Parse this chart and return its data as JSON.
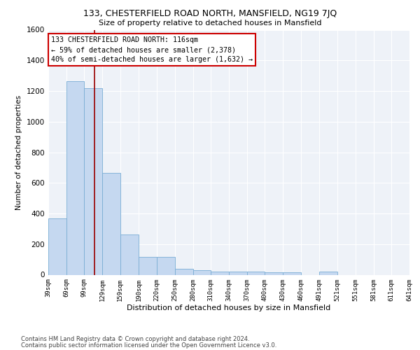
{
  "title": "133, CHESTERFIELD ROAD NORTH, MANSFIELD, NG19 7JQ",
  "subtitle": "Size of property relative to detached houses in Mansfield",
  "xlabel": "Distribution of detached houses by size in Mansfield",
  "ylabel": "Number of detached properties",
  "footnote1": "Contains HM Land Registry data © Crown copyright and database right 2024.",
  "footnote2": "Contains public sector information licensed under the Open Government Licence v3.0.",
  "bar_color": "#c5d8f0",
  "bar_edge_color": "#7aadd4",
  "background_color": "#eef2f8",
  "vline_color": "#990000",
  "vline_x": 116,
  "annotation_line1": "133 CHESTERFIELD ROAD NORTH: 116sqm",
  "annotation_line2": "← 59% of detached houses are smaller (2,378)",
  "annotation_line3": "40% of semi-detached houses are larger (1,632) →",
  "annotation_box_color": "#cc0000",
  "bin_edges": [
    39,
    69,
    99,
    129,
    159,
    190,
    220,
    250,
    280,
    310,
    340,
    370,
    400,
    430,
    460,
    491,
    521,
    551,
    581,
    611,
    641
  ],
  "bar_heights": [
    370,
    1265,
    1220,
    665,
    265,
    115,
    115,
    40,
    30,
    20,
    20,
    20,
    15,
    15,
    0,
    20,
    0,
    0,
    0,
    0
  ],
  "ylim": [
    0,
    1600
  ],
  "yticks": [
    0,
    200,
    400,
    600,
    800,
    1000,
    1200,
    1400,
    1600
  ],
  "xtick_labels": [
    "39sqm",
    "69sqm",
    "99sqm",
    "129sqm",
    "159sqm",
    "190sqm",
    "220sqm",
    "250sqm",
    "280sqm",
    "310sqm",
    "340sqm",
    "370sqm",
    "400sqm",
    "430sqm",
    "460sqm",
    "491sqm",
    "521sqm",
    "551sqm",
    "581sqm",
    "611sqm",
    "641sqm"
  ]
}
